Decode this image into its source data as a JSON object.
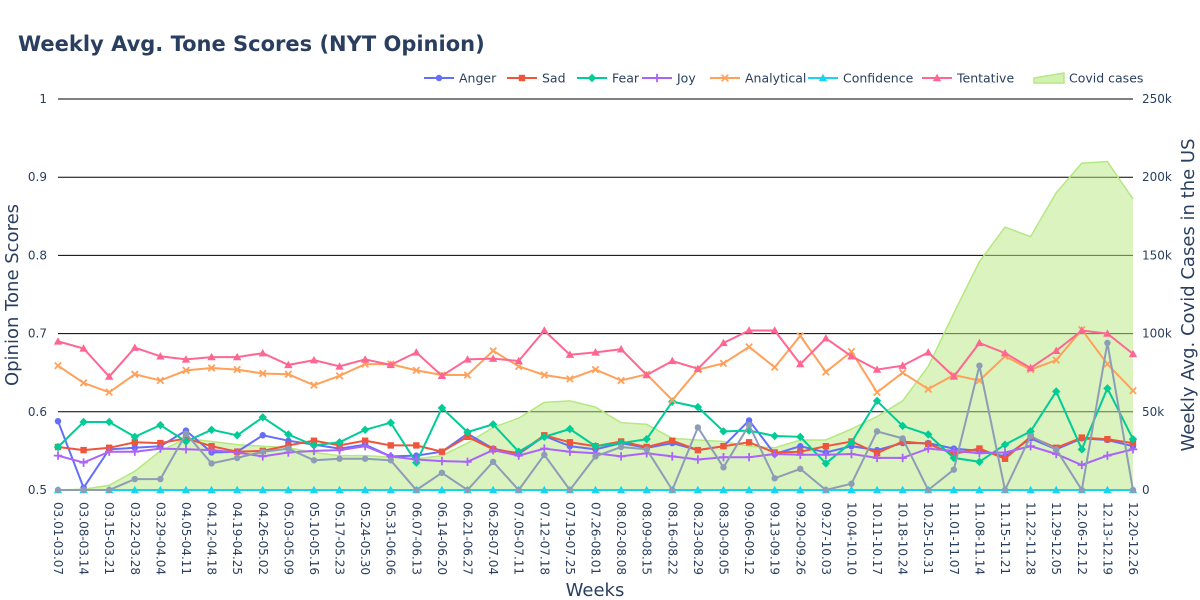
{
  "chart_data": {
    "type": "line",
    "title": "Weekly Avg. Tone Scores (NYT Opinion)",
    "xlabel": "Weeks",
    "ylabel": "Opinion Tone Scores",
    "y2label": "Weekly Avg. Covid Cases in the US",
    "ylim": [
      0.5,
      1.0
    ],
    "y2lim": [
      0,
      250000
    ],
    "yticks": [
      "0.5",
      "0.6",
      "0.7",
      "0.8",
      "0.9",
      "1"
    ],
    "y2ticks": [
      "0",
      "50k",
      "100k",
      "150k",
      "200k",
      "250k"
    ],
    "grid": true,
    "legend_position": "top-right",
    "categories": [
      "03.01-03.07",
      "03.08-03.14",
      "03.15-03.21",
      "03.22-03.28",
      "03.29-04.04",
      "04.05-04.11",
      "04.12-04.18",
      "04.19-04.25",
      "04.26-05.02",
      "05.03-05.09",
      "05.10-05.16",
      "05.17-05.23",
      "05.24-05.30",
      "05.31-06.06",
      "06.07-06.13",
      "06.14-06.20",
      "06.21-06.27",
      "06.28-07.04",
      "07.05-07.11",
      "07.12-07.18",
      "07.19-07.25",
      "07.26-08.01",
      "08.02-08.08",
      "08.09-08.15",
      "08.16-08.22",
      "08.23-08.29",
      "08.30-09.05",
      "09.06-09.12",
      "09.13-09.19",
      "09.20-09.26",
      "09.27-10.03",
      "10.04-10.10",
      "10.11-10.17",
      "10.18-10.24",
      "10.25-10.31",
      "11.01-11.07",
      "11.08-11.14",
      "11.15-11.21",
      "11.22-11.28",
      "11.29-12.05",
      "12.06-12.12",
      "12.13-12.19",
      "12.20-12.26"
    ],
    "series": [
      {
        "name": "Anger",
        "color": "#636efa",
        "marker": "circle",
        "axis": "y",
        "values": [
          0.588,
          0.503,
          0.552,
          0.554,
          0.556,
          0.576,
          0.548,
          0.549,
          0.57,
          0.563,
          0.558,
          0.553,
          0.558,
          0.543,
          0.544,
          0.549,
          0.572,
          0.553,
          0.546,
          0.569,
          0.556,
          0.552,
          0.56,
          0.554,
          0.56,
          0.551,
          0.556,
          0.589,
          0.546,
          0.556,
          0.548,
          0.556,
          0.551,
          0.56,
          0.56,
          0.553,
          0.55,
          0.543,
          0.566,
          0.552,
          0.566,
          0.564,
          0.556
        ]
      },
      {
        "name": "Sad",
        "color": "#ef553b",
        "marker": "square",
        "axis": "y",
        "values": [
          0.555,
          0.551,
          0.554,
          0.561,
          0.56,
          0.566,
          0.556,
          0.549,
          0.55,
          0.557,
          0.563,
          0.557,
          0.563,
          0.557,
          0.557,
          0.549,
          0.568,
          0.552,
          0.547,
          0.57,
          0.561,
          0.556,
          0.562,
          0.555,
          0.563,
          0.551,
          0.556,
          0.561,
          0.548,
          0.549,
          0.556,
          0.562,
          0.547,
          0.562,
          0.559,
          0.546,
          0.553,
          0.54,
          0.568,
          0.554,
          0.567,
          0.565,
          0.56
        ]
      },
      {
        "name": "Fear",
        "color": "#00cc96",
        "marker": "diamond",
        "axis": "y",
        "values": [
          0.555,
          0.587,
          0.587,
          0.568,
          0.583,
          0.562,
          0.577,
          0.57,
          0.593,
          0.571,
          0.557,
          0.561,
          0.577,
          0.586,
          0.535,
          0.605,
          0.574,
          0.584,
          0.549,
          0.568,
          0.578,
          0.556,
          0.56,
          0.565,
          0.613,
          0.606,
          0.575,
          0.576,
          0.569,
          0.568,
          0.534,
          0.561,
          0.614,
          0.582,
          0.571,
          0.541,
          0.536,
          0.558,
          0.575,
          0.626,
          0.552,
          0.63,
          0.565
        ]
      },
      {
        "name": "Joy",
        "color": "#ab63fa",
        "marker": "cross",
        "axis": "y",
        "values": [
          0.544,
          0.535,
          0.549,
          0.549,
          0.553,
          0.552,
          0.551,
          0.548,
          0.543,
          0.548,
          0.55,
          0.551,
          0.556,
          0.543,
          0.539,
          0.537,
          0.536,
          0.551,
          0.544,
          0.553,
          0.549,
          0.547,
          0.543,
          0.547,
          0.543,
          0.539,
          0.542,
          0.542,
          0.546,
          0.545,
          0.545,
          0.546,
          0.541,
          0.541,
          0.553,
          0.55,
          0.547,
          0.548,
          0.556,
          0.546,
          0.532,
          0.544,
          0.552
        ]
      },
      {
        "name": "Analytical",
        "color": "#ffa15a",
        "marker": "x",
        "axis": "y",
        "values": [
          0.659,
          0.637,
          0.625,
          0.648,
          0.64,
          0.653,
          0.656,
          0.654,
          0.649,
          0.648,
          0.634,
          0.646,
          0.661,
          0.661,
          0.653,
          0.647,
          0.647,
          0.678,
          0.658,
          0.647,
          0.642,
          0.654,
          0.64,
          0.648,
          0.615,
          0.654,
          0.662,
          0.683,
          0.657,
          0.697,
          0.651,
          0.677,
          0.625,
          0.65,
          0.629,
          0.647,
          0.64,
          0.671,
          0.654,
          0.666,
          0.705,
          0.661,
          0.627
        ]
      },
      {
        "name": "Confidence",
        "color": "#19d3f3",
        "marker": "triangle",
        "axis": "y",
        "values": [
          0.5,
          0.5,
          0.5,
          0.5,
          0.5,
          0.5,
          0.5,
          0.5,
          0.5,
          0.5,
          0.5,
          0.5,
          0.5,
          0.5,
          0.5,
          0.5,
          0.5,
          0.5,
          0.5,
          0.5,
          0.5,
          0.5,
          0.5,
          0.5,
          0.5,
          0.5,
          0.5,
          0.5,
          0.5,
          0.5,
          0.5,
          0.5,
          0.5,
          0.5,
          0.5,
          0.5,
          0.5,
          0.5,
          0.5,
          0.5,
          0.5,
          0.5,
          0.5
        ]
      },
      {
        "name": "Tentative",
        "color": "#ff6692",
        "marker": "triangle-up",
        "axis": "y",
        "values": [
          0.69,
          0.681,
          0.645,
          0.682,
          0.671,
          0.667,
          0.67,
          0.67,
          0.675,
          0.66,
          0.666,
          0.658,
          0.667,
          0.66,
          0.676,
          0.646,
          0.667,
          0.668,
          0.665,
          0.704,
          0.673,
          0.676,
          0.68,
          0.647,
          0.665,
          0.655,
          0.688,
          0.704,
          0.704,
          0.661,
          0.694,
          0.671,
          0.654,
          0.659,
          0.676,
          0.645,
          0.688,
          0.675,
          0.656,
          0.678,
          0.704,
          0.7,
          0.674
        ]
      },
      {
        "name": "",
        "color": "#8d9db6",
        "marker": "circle",
        "axis": "y",
        "values": [
          0.5,
          0.5,
          0.5,
          0.514,
          0.514,
          0.572,
          0.534,
          0.541,
          0.549,
          0.553,
          0.538,
          0.54,
          0.54,
          0.538,
          0.5,
          0.522,
          0.5,
          0.536,
          0.5,
          0.545,
          0.5,
          0.543,
          0.555,
          0.552,
          0.5,
          0.58,
          0.529,
          0.583,
          0.515,
          0.527,
          0.5,
          0.508,
          0.575,
          0.566,
          0.5,
          0.526,
          0.659,
          0.5,
          0.569,
          0.552,
          0.5,
          0.688,
          0.5
        ]
      },
      {
        "name": "Covid cases",
        "color": "#b6e880",
        "type": "area",
        "axis": "y2",
        "values": [
          0,
          500,
          3000,
          12000,
          25000,
          33000,
          31000,
          29000,
          28000,
          27000,
          24000,
          22000,
          22000,
          21000,
          20000,
          22000,
          30000,
          40000,
          46000,
          56000,
          57000,
          53000,
          43000,
          42000,
          33000,
          32000,
          31000,
          28000,
          27000,
          32000,
          32000,
          39000,
          47000,
          57000,
          79000,
          113000,
          146000,
          168000,
          162000,
          190000,
          209000,
          210000,
          186000
        ]
      }
    ]
  }
}
